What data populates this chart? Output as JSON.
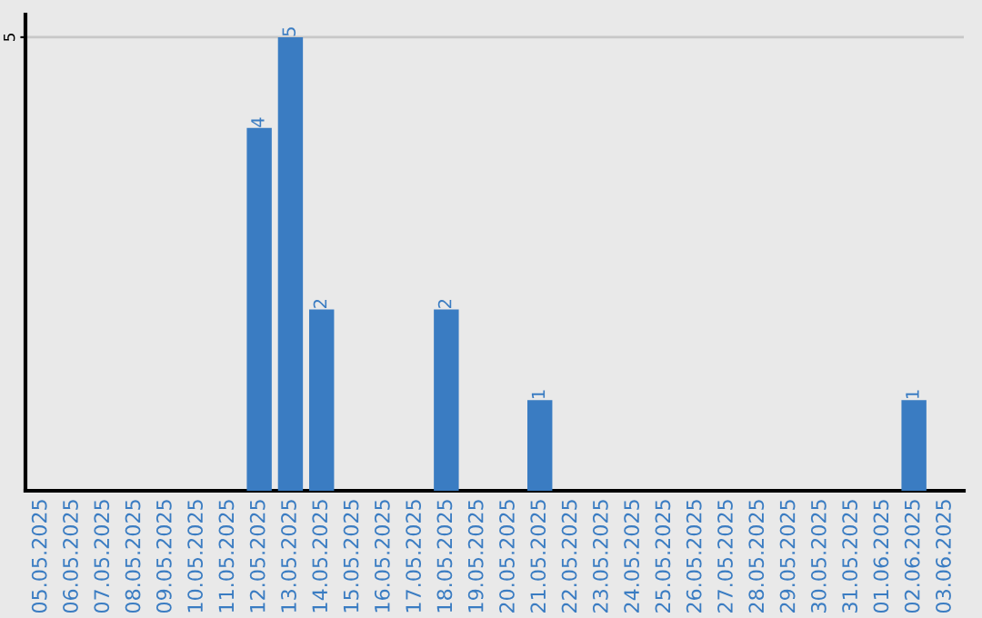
{
  "chart_data": {
    "type": "bar",
    "categories": [
      "05.05.2025",
      "06.05.2025",
      "07.05.2025",
      "08.05.2025",
      "09.05.2025",
      "10.05.2025",
      "11.05.2025",
      "12.05.2025",
      "13.05.2025",
      "14.05.2025",
      "15.05.2025",
      "16.05.2025",
      "17.05.2025",
      "18.05.2025",
      "19.05.2025",
      "20.05.2025",
      "21.05.2025",
      "22.05.2025",
      "23.05.2025",
      "24.05.2025",
      "25.05.2025",
      "26.05.2025",
      "27.05.2025",
      "28.05.2025",
      "29.05.2025",
      "30.05.2025",
      "31.05.2025",
      "01.06.2025",
      "02.06.2025",
      "03.06.2025"
    ],
    "values": [
      0,
      0,
      0,
      0,
      0,
      0,
      0,
      4,
      5,
      2,
      0,
      0,
      0,
      2,
      0,
      0,
      1,
      0,
      0,
      0,
      0,
      0,
      0,
      0,
      0,
      0,
      0,
      0,
      1,
      0
    ],
    "value_labels": [
      null,
      null,
      null,
      null,
      null,
      null,
      null,
      "4",
      "5",
      "2",
      null,
      null,
      null,
      "2",
      null,
      null,
      "1",
      null,
      null,
      null,
      null,
      null,
      null,
      null,
      null,
      null,
      null,
      null,
      "1",
      null
    ],
    "color": "#3a7cc2",
    "ylim": [
      0,
      5.25
    ],
    "yticks": [
      5
    ],
    "grid": "y"
  }
}
